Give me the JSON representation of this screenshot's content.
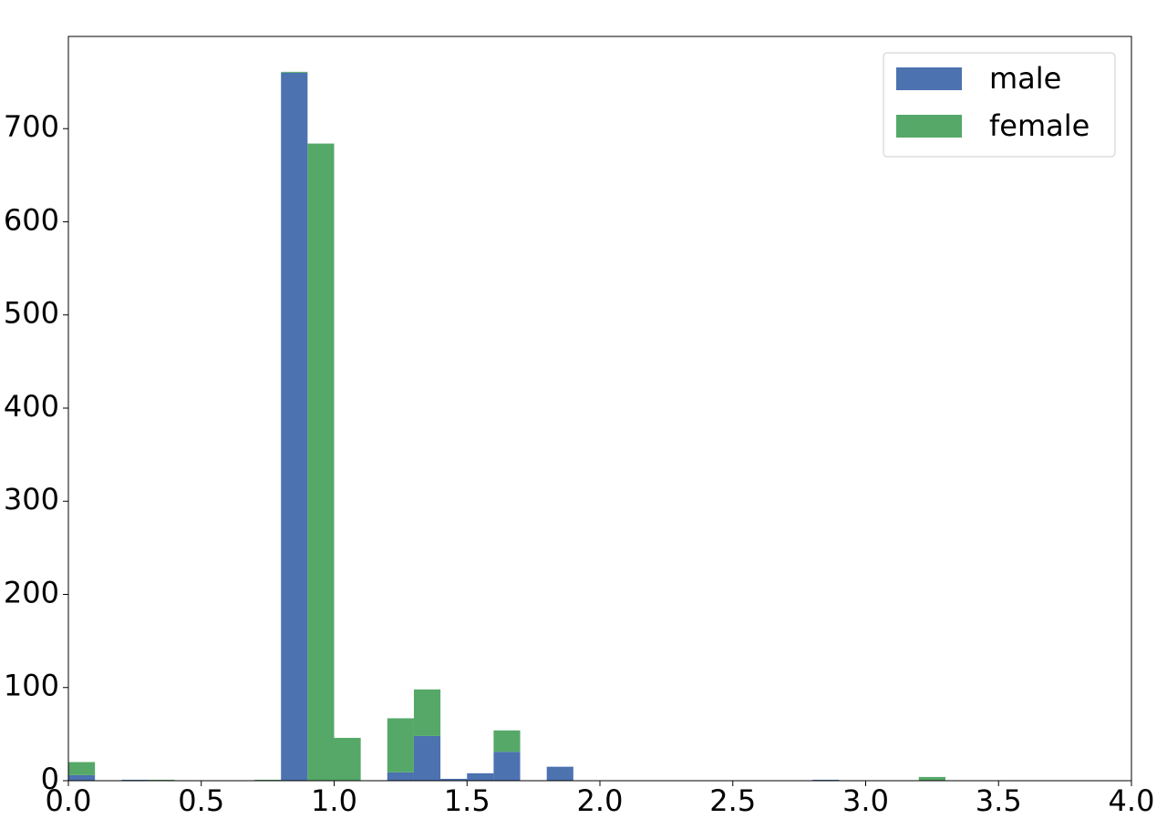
{
  "chart_data": {
    "type": "histogram",
    "bins": [
      0,
      0.1,
      0.2,
      0.3,
      0.4,
      0.5,
      0.6,
      0.7,
      0.8,
      0.9,
      1.0,
      1.1,
      1.2,
      1.3,
      1.4,
      1.5,
      1.6,
      1.7,
      1.8,
      1.9,
      2.0,
      2.1,
      2.2,
      2.3,
      2.4,
      2.5,
      2.6,
      2.7,
      2.8,
      2.9,
      3.0,
      3.1,
      3.2,
      3.3,
      3.4,
      3.5,
      3.6,
      3.7,
      3.8,
      3.9,
      4.0
    ],
    "stacked": true,
    "series": [
      {
        "name": "male",
        "color": "#4c72b0",
        "values": [
          6,
          0,
          1,
          0,
          0,
          0,
          0,
          0,
          760,
          0,
          0,
          0,
          9,
          48,
          2,
          8,
          31,
          0,
          15,
          0,
          0,
          0,
          0,
          0,
          0,
          0,
          0,
          0,
          1,
          0,
          0,
          0,
          0,
          0,
          0,
          0,
          0,
          0,
          0,
          0
        ]
      },
      {
        "name": "female",
        "color": "#55a868",
        "values": [
          14,
          0,
          0,
          1,
          0,
          0,
          0,
          1,
          1,
          684,
          46,
          0,
          58,
          50,
          0,
          0,
          23,
          0,
          0,
          0,
          0,
          0,
          0,
          0,
          0,
          0,
          0,
          0,
          0,
          0,
          0,
          0,
          4,
          0,
          0,
          0,
          0,
          0,
          0,
          0
        ]
      }
    ],
    "xlim": [
      0,
      4
    ],
    "xticks": [
      {
        "value": 0,
        "label": "0.0"
      },
      0.5,
      {
        "value": 1,
        "label": "1.0"
      },
      1.5,
      {
        "value": 2,
        "label": "2.0"
      },
      2.5,
      {
        "value": 3,
        "label": "3.0"
      },
      3.5,
      {
        "value": 4,
        "label": "4.0"
      }
    ],
    "ylim": [
      0,
      799
    ],
    "yticks": [
      0,
      100,
      200,
      300,
      400,
      500,
      600,
      700
    ],
    "legend": "upper right"
  }
}
